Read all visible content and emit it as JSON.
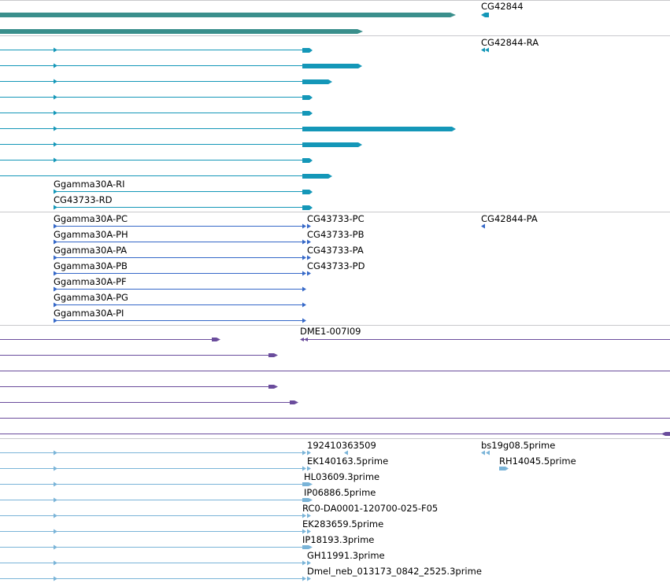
{
  "colors": {
    "gene_teal": "#3a8f8c",
    "mrna_teal": "#1497b8",
    "mrna_blue": "#3568c8",
    "est_purple": "#6a4c9c",
    "est_light": "#7ab4d8",
    "divider": "#c8c8cc"
  },
  "tracks": [
    {
      "name": "gene",
      "labels": [
        {
          "id": "cg42844",
          "text": "CG42844"
        }
      ]
    },
    {
      "name": "mrna-teal",
      "labels": [
        {
          "id": "cg42844-ra",
          "text": "CG42844-RA"
        },
        {
          "id": "ggamma30a-ri",
          "text": "Ggamma30A-RI"
        },
        {
          "id": "cg43733-rd",
          "text": "CG43733-RD"
        }
      ]
    },
    {
      "name": "mrna-blue",
      "labels": [
        {
          "id": "ggamma30a-pc",
          "text": "Ggamma30A-PC"
        },
        {
          "id": "cg43733-pc",
          "text": "CG43733-PC"
        },
        {
          "id": "cg42844-pa",
          "text": "CG42844-PA"
        },
        {
          "id": "ggamma30a-ph",
          "text": "Ggamma30A-PH"
        },
        {
          "id": "cg43733-pb",
          "text": "CG43733-PB"
        },
        {
          "id": "ggamma30a-pa",
          "text": "Ggamma30A-PA"
        },
        {
          "id": "cg43733-pa",
          "text": "CG43733-PA"
        },
        {
          "id": "ggamma30a-pb",
          "text": "Ggamma30A-PB"
        },
        {
          "id": "cg43733-pd",
          "text": "CG43733-PD"
        },
        {
          "id": "ggamma30a-pf",
          "text": "Ggamma30A-PF"
        },
        {
          "id": "ggamma30a-pg",
          "text": "Ggamma30A-PG"
        },
        {
          "id": "ggamma30a-pi",
          "text": "Ggamma30A-PI"
        }
      ]
    },
    {
      "name": "est-purple",
      "labels": [
        {
          "id": "dme1-007i09",
          "text": "DME1-007I09"
        }
      ]
    },
    {
      "name": "est-light",
      "labels": [
        {
          "id": "est-192410363509",
          "text": "192410363509"
        },
        {
          "id": "bs19g08-5prime",
          "text": "bs19g08.5prime"
        },
        {
          "id": "ek140163-5prime",
          "text": "EK140163.5prime"
        },
        {
          "id": "rh14045-5prime",
          "text": "RH14045.5prime"
        },
        {
          "id": "hl03609-3prime",
          "text": "HL03609.3prime"
        },
        {
          "id": "ip06886-5prime",
          "text": "IP06886.5prime"
        },
        {
          "id": "rc0-da0001",
          "text": "RC0-DA0001-120700-025-F05"
        },
        {
          "id": "ek283659-5prime",
          "text": "EK283659.5prime"
        },
        {
          "id": "ip18193-3prime",
          "text": "IP18193.3prime"
        },
        {
          "id": "gh11991-3prime",
          "text": "GH11991.3prime"
        },
        {
          "id": "dmel-neb",
          "text": "Dmel_neb_013173_0842_2525.3prime"
        }
      ]
    }
  ]
}
